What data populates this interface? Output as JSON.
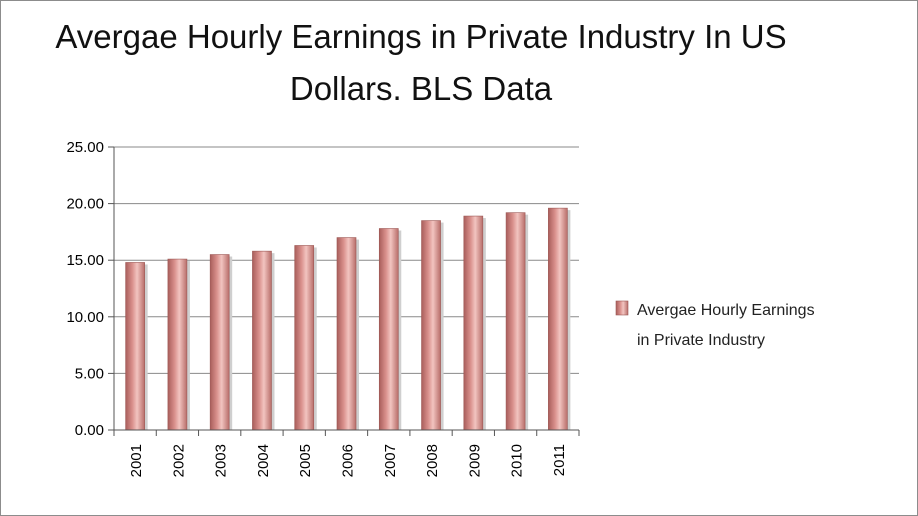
{
  "chart_data": {
    "type": "bar",
    "title": "Avergae Hourly Earnings in Private Industry In US Dollars. BLS Data",
    "categories": [
      "2001",
      "2002",
      "2003",
      "2004",
      "2005",
      "2006",
      "2007",
      "2008",
      "2009",
      "2010",
      "2011"
    ],
    "series": [
      {
        "name": "Avergae Hourly Earnings in Private Industry",
        "values": [
          14.8,
          15.1,
          15.5,
          15.8,
          16.3,
          17.0,
          17.8,
          18.5,
          18.9,
          19.2,
          19.6
        ],
        "color": "#d9908c"
      }
    ],
    "xlabel": "",
    "ylabel": "",
    "ylim": [
      0,
      25
    ],
    "yticks": [
      "0.00",
      "5.00",
      "10.00",
      "15.00",
      "20.00",
      "25.00"
    ],
    "grid": true,
    "legend_position": "right"
  }
}
